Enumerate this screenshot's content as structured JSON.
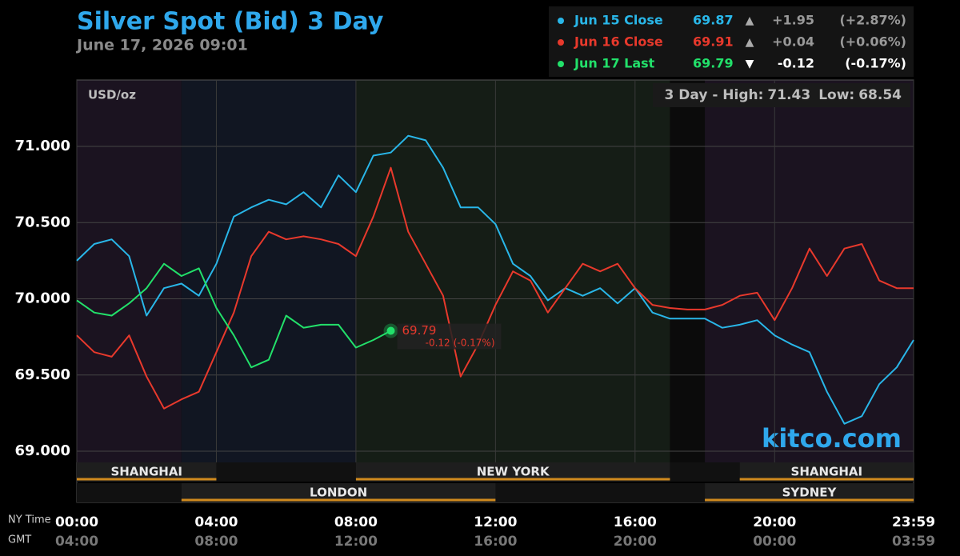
{
  "chart_data": {
    "type": "line",
    "title": "Silver Spot (Bid) 3 Day",
    "subtitle": "June 17, 2026 09:01",
    "unit_label": "USD/oz",
    "watermark": "kitco.com",
    "high_low": {
      "high_label": "3 Day - High:",
      "high": 71.43,
      "low_label": "Low:",
      "low": 68.54
    },
    "x_axis_label": "NY Time",
    "x2_axis_label": "GMT",
    "xlim": [
      0,
      23.983
    ],
    "xticks": [
      {
        "value": 0,
        "label": "00:00"
      },
      {
        "value": 4,
        "label": "04:00"
      },
      {
        "value": 8,
        "label": "08:00"
      },
      {
        "value": 12,
        "label": "12:00"
      },
      {
        "value": 16,
        "label": "16:00"
      },
      {
        "value": 20,
        "label": "20:00"
      },
      {
        "value": 23.983,
        "label": "23:59"
      }
    ],
    "x2ticks": [
      "04:00",
      "08:00",
      "12:00",
      "16:00",
      "20:00",
      "00:00",
      "03:59"
    ],
    "ylim": [
      68.664,
      71.436
    ],
    "yticks": [
      {
        "value": 69,
        "label": "69.000"
      },
      {
        "value": 69.5,
        "label": "69.500"
      },
      {
        "value": 70,
        "label": "70.000"
      },
      {
        "value": 70.5,
        "label": "70.500"
      },
      {
        "value": 71,
        "label": "71.000"
      }
    ],
    "grid": true,
    "legend": "top-right",
    "shading": [
      {
        "start": 0,
        "end": 3,
        "color": "#1b1320"
      },
      {
        "start": 3,
        "end": 8,
        "color": "#111622"
      },
      {
        "start": 8,
        "end": 17,
        "color": "#151d16"
      },
      {
        "start": 17,
        "end": 18,
        "color": "#0b0b0b"
      },
      {
        "start": 18,
        "end": 23.983,
        "color": "#1b1320"
      }
    ],
    "sessions": [
      {
        "name": "SHANGHAI",
        "start": 0,
        "end": 4
      },
      {
        "name": "LONDON",
        "start": 3,
        "end": 12
      },
      {
        "name": "NEW YORK",
        "start": 8,
        "end": 17
      },
      {
        "name": "SHANGHAI",
        "start": 19,
        "end": 23.983
      },
      {
        "name": "SYDNEY",
        "start": 18,
        "end": 23.983
      }
    ],
    "x": [
      0,
      0.5,
      1,
      1.5,
      2,
      2.5,
      3,
      3.5,
      4,
      4.5,
      5,
      5.5,
      6,
      6.5,
      7,
      7.5,
      8,
      8.5,
      9,
      9.5,
      10,
      10.5,
      11,
      11.5,
      12,
      12.5,
      13,
      13.5,
      14,
      14.5,
      15,
      15.5,
      16,
      16.5,
      17,
      17.5,
      18,
      18.5,
      19,
      19.5,
      20,
      20.5,
      21,
      21.5,
      22,
      22.5,
      23,
      23.5,
      23.983
    ],
    "series": [
      {
        "name": "Jun 15 Close",
        "color": "#29b6e8",
        "close": 69.87,
        "arrow": "▲",
        "change": {
          "value": 1.95,
          "label": "+1.95"
        },
        "change_pct": {
          "value": 2.87,
          "label": "(+2.87%)"
        },
        "values": [
          70.25,
          70.36,
          70.39,
          70.28,
          69.89,
          70.07,
          70.1,
          70.02,
          70.23,
          70.54,
          70.6,
          70.65,
          70.62,
          70.7,
          70.6,
          70.81,
          70.7,
          70.94,
          70.96,
          71.07,
          71.04,
          70.86,
          70.6,
          70.6,
          70.49,
          70.23,
          70.15,
          69.99,
          70.07,
          70.02,
          70.07,
          69.97,
          70.07,
          69.91,
          69.87,
          69.87,
          69.87,
          69.81,
          69.83,
          69.86,
          69.76,
          69.7,
          69.65,
          69.39,
          69.18,
          69.23,
          69.44,
          69.55,
          69.73
        ]
      },
      {
        "name": "Jun 16 Close",
        "color": "#e8392c",
        "close": 69.91,
        "arrow": "▲",
        "change": {
          "value": 0.04,
          "label": "+0.04"
        },
        "change_pct": {
          "value": 0.06,
          "label": "(+0.06%)"
        },
        "values": [
          69.76,
          69.65,
          69.62,
          69.76,
          69.49,
          69.28,
          69.34,
          69.39,
          69.65,
          69.91,
          70.28,
          70.44,
          70.39,
          70.41,
          70.39,
          70.36,
          70.28,
          70.54,
          70.86,
          70.44,
          70.23,
          70.02,
          69.49,
          69.7,
          69.96,
          70.18,
          70.12,
          69.91,
          70.07,
          70.23,
          70.18,
          70.23,
          70.07,
          69.96,
          69.94,
          69.93,
          69.93,
          69.96,
          70.02,
          70.04,
          69.86,
          70.07,
          70.33,
          70.15,
          70.33,
          70.36,
          70.12,
          70.07,
          70.07
        ]
      },
      {
        "name": "Jun 17 Last",
        "color": "#22e06a",
        "close": 69.79,
        "arrow": "▼",
        "change": {
          "value": -0.12,
          "label": "-0.12"
        },
        "change_pct": {
          "value": -0.17,
          "label": "(-0.17%)"
        },
        "values": [
          69.99,
          69.91,
          69.89,
          69.97,
          70.07,
          70.23,
          70.15,
          70.2,
          69.94,
          69.76,
          69.55,
          69.6,
          69.89,
          69.81,
          69.83,
          69.83,
          69.68,
          69.73,
          69.79,
          null,
          null,
          null,
          null,
          null,
          null,
          null,
          null,
          null,
          null,
          null,
          null,
          null,
          null,
          null,
          null,
          null,
          null,
          null,
          null,
          null,
          null,
          null,
          null,
          null,
          null,
          null,
          null,
          null,
          null
        ]
      }
    ]
  }
}
